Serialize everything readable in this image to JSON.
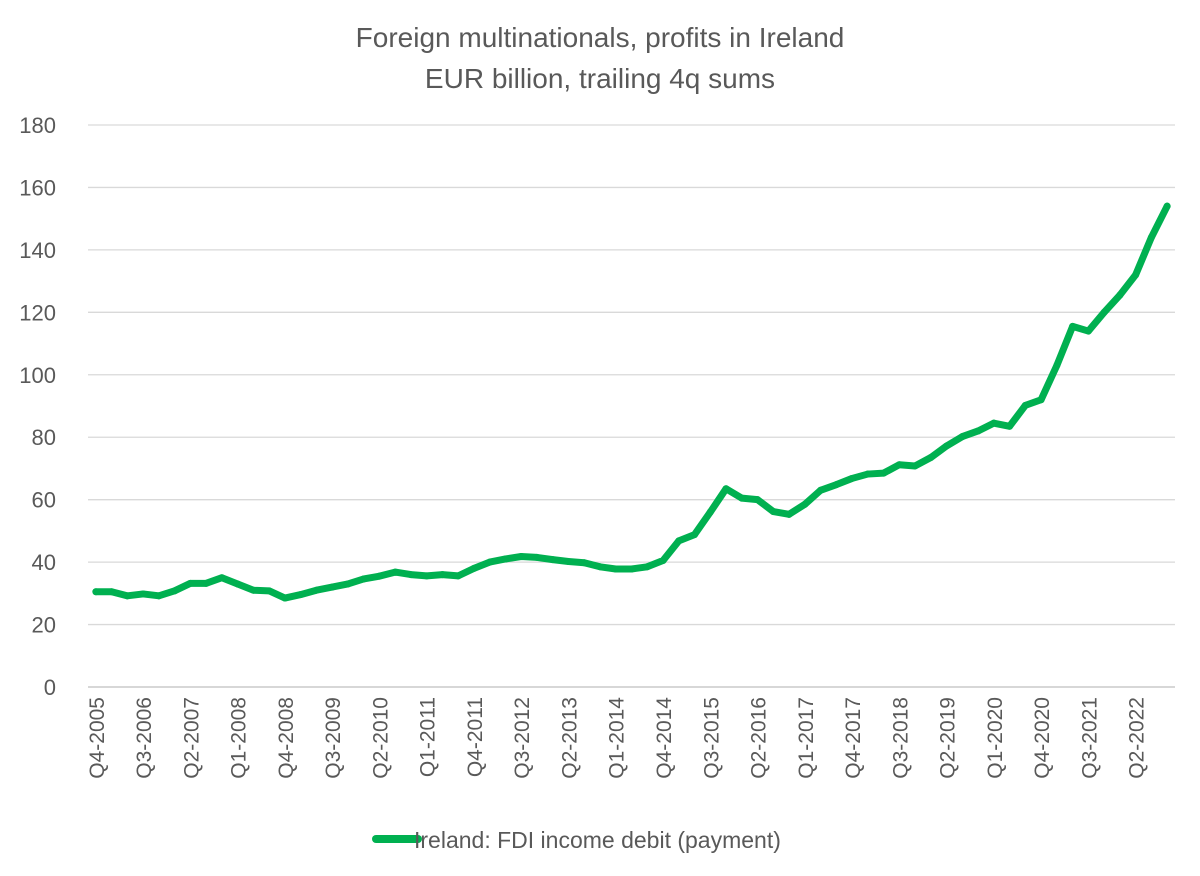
{
  "chart_data": {
    "type": "line",
    "title": "Foreign multinationals, profits in Ireland",
    "subtitle": "EUR billion, trailing 4q sums",
    "xlabel": "",
    "ylabel": "",
    "ylim": [
      0,
      180
    ],
    "yticks": [
      0,
      20,
      40,
      60,
      80,
      100,
      120,
      140,
      160,
      180
    ],
    "grid": true,
    "legend_position": "bottom",
    "colors": {
      "series": "#00b050",
      "grid": "#d9d9d9",
      "text": "#595959"
    },
    "x": [
      "Q4-2005",
      "Q1-2006",
      "Q2-2006",
      "Q3-2006",
      "Q4-2006",
      "Q1-2007",
      "Q2-2007",
      "Q3-2007",
      "Q4-2007",
      "Q1-2008",
      "Q2-2008",
      "Q3-2008",
      "Q4-2008",
      "Q1-2009",
      "Q2-2009",
      "Q3-2009",
      "Q4-2009",
      "Q1-2010",
      "Q2-2010",
      "Q3-2010",
      "Q4-2010",
      "Q1-2011",
      "Q2-2011",
      "Q3-2011",
      "Q4-2011",
      "Q1-2012",
      "Q2-2012",
      "Q3-2012",
      "Q4-2012",
      "Q1-2013",
      "Q2-2013",
      "Q3-2013",
      "Q4-2013",
      "Q1-2014",
      "Q2-2014",
      "Q3-2014",
      "Q4-2014",
      "Q1-2015",
      "Q2-2015",
      "Q3-2015",
      "Q4-2015",
      "Q1-2016",
      "Q2-2016",
      "Q3-2016",
      "Q4-2016",
      "Q1-2017",
      "Q2-2017",
      "Q3-2017",
      "Q4-2017",
      "Q1-2018",
      "Q2-2018",
      "Q3-2018",
      "Q4-2018",
      "Q1-2019",
      "Q2-2019",
      "Q3-2019",
      "Q4-2019",
      "Q1-2020",
      "Q2-2020",
      "Q3-2020",
      "Q4-2020",
      "Q1-2021",
      "Q2-2021",
      "Q3-2021",
      "Q4-2021",
      "Q1-2022",
      "Q2-2022",
      "Q3-2022",
      "Q4-2022"
    ],
    "tick_labels": [
      "Q4-2005",
      "Q3-2006",
      "Q2-2007",
      "Q1-2008",
      "Q4-2008",
      "Q3-2009",
      "Q2-2010",
      "Q1-2011",
      "Q4-2011",
      "Q3-2012",
      "Q2-2013",
      "Q1-2014",
      "Q4-2014",
      "Q3-2015",
      "Q2-2016",
      "Q1-2017",
      "Q4-2017",
      "Q3-2018",
      "Q2-2019",
      "Q1-2020",
      "Q4-2020",
      "Q3-2021",
      "Q2-2022"
    ],
    "series": [
      {
        "name": "Ireland: FDI income debit (payment)",
        "values": [
          30.5,
          30.5,
          29.2,
          29.8,
          29.2,
          30.8,
          33.2,
          33.2,
          35.0,
          33.0,
          31.0,
          30.8,
          28.5,
          29.6,
          31.0,
          32.0,
          33.0,
          34.6,
          35.5,
          36.8,
          36.0,
          35.6,
          36.0,
          35.6,
          38.0,
          40.0,
          41.0,
          41.8,
          41.5,
          40.8,
          40.2,
          39.8,
          38.5,
          37.8,
          37.8,
          38.5,
          40.5,
          46.8,
          48.8,
          56.0,
          63.5,
          60.5,
          60.0,
          56.2,
          55.3,
          58.5,
          63.0,
          64.8,
          66.8,
          68.2,
          68.5,
          71.2,
          70.8,
          73.5,
          77.2,
          80.2,
          82.0,
          84.5,
          83.5,
          90.2,
          92.0,
          103.0,
          115.5,
          114.0,
          120.0,
          125.5,
          132.0,
          144.0,
          154.0
        ]
      }
    ]
  }
}
